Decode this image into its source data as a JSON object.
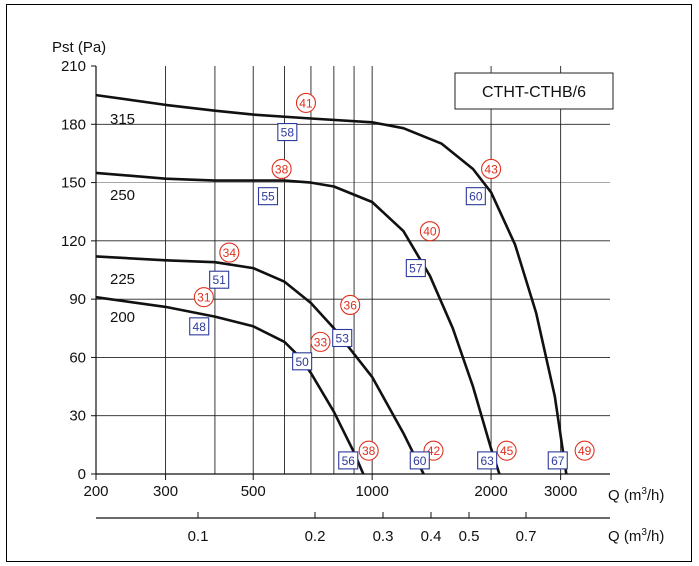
{
  "chart_data": {
    "type": "line",
    "title": "CTHT-CTHB/6",
    "ylabel": "Pst (Pa)",
    "xlabel": "Q (m3/h)",
    "xlabel_secondary": "Q (m3/h)",
    "x_scale": "log",
    "xlim": [
      200,
      4000
    ],
    "ylim": [
      0,
      210
    ],
    "y_ticks": [
      0,
      30,
      60,
      90,
      120,
      150,
      180,
      210
    ],
    "x_ticks": [
      200,
      300,
      500,
      1000,
      2000,
      3000
    ],
    "x_ticks_secondary": [
      "0.1",
      "0.2",
      "0.3",
      "0.4",
      "0.5",
      "0.7"
    ],
    "grid": true,
    "series": [
      {
        "name": "200",
        "x": [
          200,
          300,
          400,
          500,
          600,
          650,
          700,
          800,
          900,
          950
        ],
        "y": [
          91,
          86,
          81,
          76,
          68,
          61,
          52,
          32,
          11,
          0
        ]
      },
      {
        "name": "225",
        "x": [
          200,
          300,
          400,
          500,
          600,
          700,
          800,
          1000,
          1200,
          1350
        ],
        "y": [
          112,
          110,
          109,
          106,
          99,
          88,
          75,
          50,
          21,
          0
        ]
      },
      {
        "name": "250",
        "x": [
          200,
          300,
          400,
          500,
          600,
          700,
          800,
          1000,
          1200,
          1400,
          1600,
          1800,
          2000,
          2100
        ],
        "y": [
          155,
          152,
          151,
          151,
          151,
          150,
          148,
          140,
          125,
          102,
          75,
          45,
          13,
          0
        ]
      },
      {
        "name": "315",
        "x": [
          200,
          300,
          400,
          500,
          700,
          1000,
          1200,
          1500,
          1800,
          2000,
          2300,
          2600,
          2900,
          3100
        ],
        "y": [
          195,
          190,
          187,
          185,
          183,
          181,
          178,
          170,
          157,
          145,
          118,
          83,
          40,
          0
        ]
      }
    ],
    "red_markers": [
      {
        "label": "41",
        "x": 680,
        "y": 191
      },
      {
        "label": "38",
        "x": 590,
        "y": 157
      },
      {
        "label": "34",
        "x": 435,
        "y": 114
      },
      {
        "label": "31",
        "x": 375,
        "y": 91
      },
      {
        "label": "43",
        "x": 2000,
        "y": 157
      },
      {
        "label": "40",
        "x": 1400,
        "y": 125
      },
      {
        "label": "36",
        "x": 880,
        "y": 87
      },
      {
        "label": "33",
        "x": 740,
        "y": 68
      },
      {
        "label": "38",
        "x": 980,
        "y": 12
      },
      {
        "label": "42",
        "x": 1430,
        "y": 12
      },
      {
        "label": "45",
        "x": 2190,
        "y": 12
      },
      {
        "label": "49",
        "x": 3450,
        "y": 12
      }
    ],
    "blue_markers": [
      {
        "label": "58",
        "x": 610,
        "y": 176
      },
      {
        "label": "55",
        "x": 545,
        "y": 143
      },
      {
        "label": "51",
        "x": 410,
        "y": 100
      },
      {
        "label": "48",
        "x": 365,
        "y": 76
      },
      {
        "label": "60",
        "x": 1830,
        "y": 143
      },
      {
        "label": "57",
        "x": 1290,
        "y": 106
      },
      {
        "label": "53",
        "x": 840,
        "y": 70
      },
      {
        "label": "50",
        "x": 665,
        "y": 58
      },
      {
        "label": "56",
        "x": 870,
        "y": 7
      },
      {
        "label": "60",
        "x": 1320,
        "y": 7
      },
      {
        "label": "63",
        "x": 1955,
        "y": 7
      },
      {
        "label": "67",
        "x": 2950,
        "y": 7
      }
    ]
  }
}
